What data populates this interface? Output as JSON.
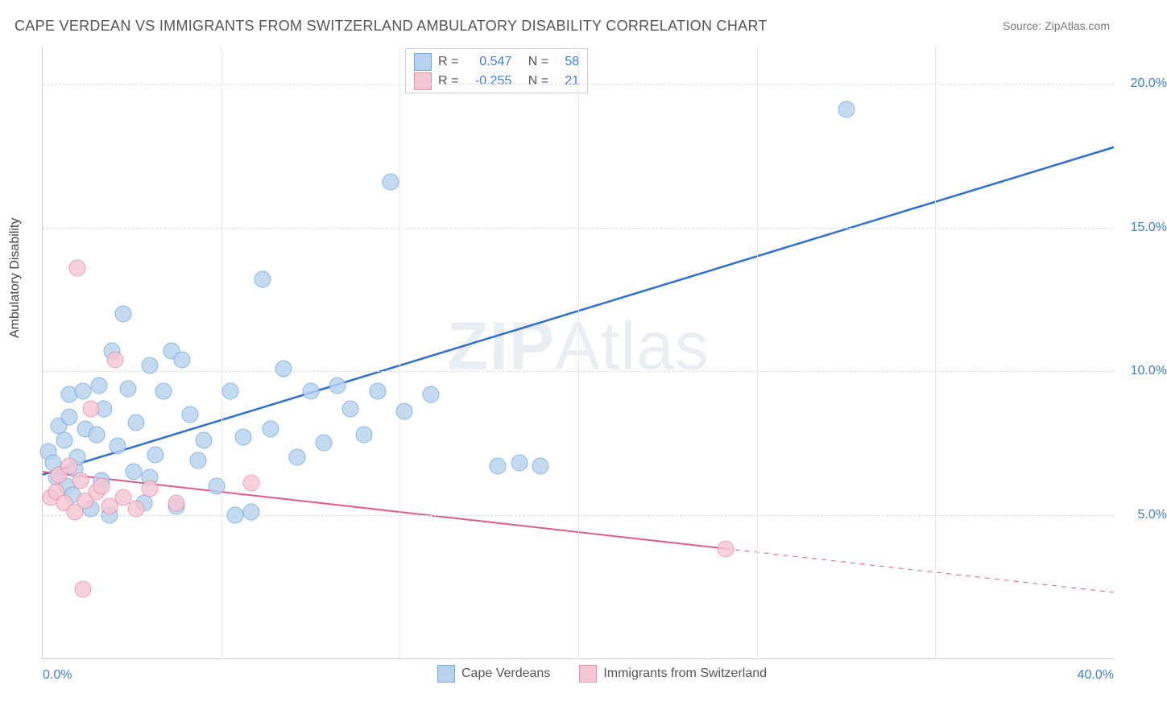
{
  "title": "CAPE VERDEAN VS IMMIGRANTS FROM SWITZERLAND AMBULATORY DISABILITY CORRELATION CHART",
  "source": "Source: ZipAtlas.com",
  "ylabel": "Ambulatory Disability",
  "watermark_prefix": "ZIP",
  "watermark_suffix": "Atlas",
  "chart": {
    "type": "scatter",
    "xlim": [
      0,
      40
    ],
    "ylim": [
      0,
      21.3
    ],
    "xticks": [
      0,
      40
    ],
    "xtick_labels": [
      "0.0%",
      "40.0%"
    ],
    "yticks": [
      5,
      10,
      15,
      20
    ],
    "ytick_labels": [
      "5.0%",
      "10.0%",
      "15.0%",
      "20.0%"
    ],
    "x_gridlines": [
      6.67,
      13.33,
      20,
      26.67,
      33.33
    ],
    "background_color": "#ffffff",
    "grid_color": "#dddddd",
    "axis_color": "#cccccc",
    "marker_radius": 9.5,
    "series": [
      {
        "name": "Cape Verdeans",
        "fill": "#b7d2ef",
        "stroke": "#6fa8e6",
        "trend_color": "#2e6fd6",
        "trend_width": 2.5,
        "R": "0.547",
        "N": "58",
        "trend_start": {
          "x": 0,
          "y": 6.4
        },
        "trend_end": {
          "x": 40,
          "y": 17.8
        },
        "trend_dash_from_x": null,
        "points": [
          {
            "x": 0.2,
            "y": 7.2
          },
          {
            "x": 0.4,
            "y": 6.8
          },
          {
            "x": 0.5,
            "y": 6.3
          },
          {
            "x": 0.6,
            "y": 8.1
          },
          {
            "x": 0.8,
            "y": 7.6
          },
          {
            "x": 0.9,
            "y": 6.0
          },
          {
            "x": 1.0,
            "y": 9.2
          },
          {
            "x": 1.0,
            "y": 8.4
          },
          {
            "x": 1.1,
            "y": 5.7
          },
          {
            "x": 1.2,
            "y": 6.6
          },
          {
            "x": 1.3,
            "y": 7.0
          },
          {
            "x": 1.5,
            "y": 9.3
          },
          {
            "x": 1.6,
            "y": 8.0
          },
          {
            "x": 1.8,
            "y": 5.2
          },
          {
            "x": 2.0,
            "y": 7.8
          },
          {
            "x": 2.1,
            "y": 9.5
          },
          {
            "x": 2.2,
            "y": 6.2
          },
          {
            "x": 2.3,
            "y": 8.7
          },
          {
            "x": 2.5,
            "y": 5.0
          },
          {
            "x": 2.6,
            "y": 10.7
          },
          {
            "x": 2.8,
            "y": 7.4
          },
          {
            "x": 3.0,
            "y": 12.0
          },
          {
            "x": 3.2,
            "y": 9.4
          },
          {
            "x": 3.4,
            "y": 6.5
          },
          {
            "x": 3.5,
            "y": 8.2
          },
          {
            "x": 3.8,
            "y": 5.4
          },
          {
            "x": 4.0,
            "y": 10.2
          },
          {
            "x": 4.2,
            "y": 7.1
          },
          {
            "x": 4.5,
            "y": 9.3
          },
          {
            "x": 4.8,
            "y": 10.7
          },
          {
            "x": 5.0,
            "y": 5.3
          },
          {
            "x": 5.2,
            "y": 10.4
          },
          {
            "x": 5.5,
            "y": 8.5
          },
          {
            "x": 5.8,
            "y": 6.9
          },
          {
            "x": 6.0,
            "y": 7.6
          },
          {
            "x": 6.5,
            "y": 6.0
          },
          {
            "x": 7.0,
            "y": 9.3
          },
          {
            "x": 7.5,
            "y": 7.7
          },
          {
            "x": 7.8,
            "y": 5.1
          },
          {
            "x": 8.2,
            "y": 13.2
          },
          {
            "x": 8.5,
            "y": 8.0
          },
          {
            "x": 9.0,
            "y": 10.1
          },
          {
            "x": 9.5,
            "y": 7.0
          },
          {
            "x": 10.0,
            "y": 9.3
          },
          {
            "x": 10.5,
            "y": 7.5
          },
          {
            "x": 11.0,
            "y": 9.5
          },
          {
            "x": 11.5,
            "y": 8.7
          },
          {
            "x": 12.0,
            "y": 7.8
          },
          {
            "x": 12.5,
            "y": 9.3
          },
          {
            "x": 13.0,
            "y": 16.6
          },
          {
            "x": 13.5,
            "y": 8.6
          },
          {
            "x": 14.5,
            "y": 9.2
          },
          {
            "x": 17.0,
            "y": 6.7
          },
          {
            "x": 17.8,
            "y": 6.8
          },
          {
            "x": 18.6,
            "y": 6.7
          },
          {
            "x": 7.2,
            "y": 5.0
          },
          {
            "x": 30.0,
            "y": 19.1
          },
          {
            "x": 4.0,
            "y": 6.3
          }
        ]
      },
      {
        "name": "Immigrants from Switzerland",
        "fill": "#f5c6d3",
        "stroke": "#e88fa8",
        "trend_color": "#e05a87",
        "trend_width": 2,
        "R": "-0.255",
        "N": "21",
        "trend_start": {
          "x": 0,
          "y": 6.5
        },
        "trend_end": {
          "x": 40,
          "y": 2.3
        },
        "trend_dash_from_x": 25.5,
        "points": [
          {
            "x": 0.3,
            "y": 5.6
          },
          {
            "x": 0.5,
            "y": 5.8
          },
          {
            "x": 0.6,
            "y": 6.4
          },
          {
            "x": 0.8,
            "y": 5.4
          },
          {
            "x": 1.0,
            "y": 6.7
          },
          {
            "x": 1.2,
            "y": 5.1
          },
          {
            "x": 1.4,
            "y": 6.2
          },
          {
            "x": 1.3,
            "y": 13.6
          },
          {
            "x": 1.6,
            "y": 5.5
          },
          {
            "x": 1.8,
            "y": 8.7
          },
          {
            "x": 2.0,
            "y": 5.8
          },
          {
            "x": 2.2,
            "y": 6.0
          },
          {
            "x": 2.5,
            "y": 5.3
          },
          {
            "x": 2.7,
            "y": 10.4
          },
          {
            "x": 3.0,
            "y": 5.6
          },
          {
            "x": 3.5,
            "y": 5.2
          },
          {
            "x": 4.0,
            "y": 5.9
          },
          {
            "x": 5.0,
            "y": 5.4
          },
          {
            "x": 7.8,
            "y": 6.1
          },
          {
            "x": 1.5,
            "y": 2.4
          },
          {
            "x": 25.5,
            "y": 3.8
          }
        ]
      }
    ]
  },
  "legend_labels": {
    "R": "R =",
    "N": "N ="
  },
  "bottom_legend": {
    "series1": "Cape Verdeans",
    "series2": "Immigrants from Switzerland"
  }
}
